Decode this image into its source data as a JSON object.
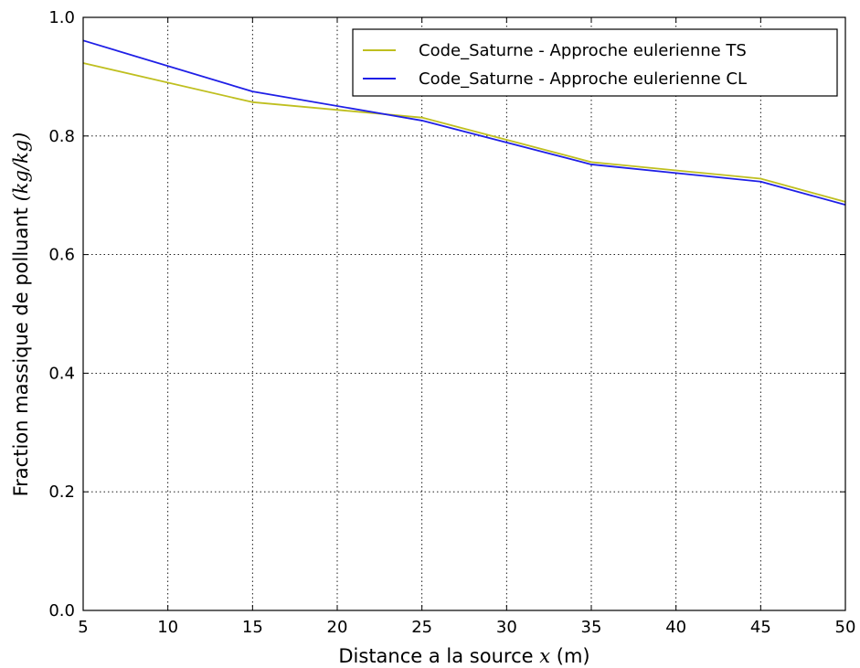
{
  "chart_data": {
    "type": "line",
    "xlabel": "Distance a la source",
    "xlabel_math": "x",
    "xlabel_unit": "(m)",
    "ylabel": "Fraction massique de polluant",
    "ylabel_unit": "(kg/kg)",
    "xlim": [
      5,
      50
    ],
    "ylim": [
      0.0,
      1.0
    ],
    "grid": true,
    "legend_position": "top-right",
    "x_ticks": [
      5,
      10,
      15,
      20,
      25,
      30,
      35,
      40,
      45,
      50
    ],
    "y_ticks": [
      0.0,
      0.2,
      0.4,
      0.6,
      0.8,
      1.0
    ],
    "x_tick_labels": [
      "5",
      "10",
      "15",
      "20",
      "25",
      "30",
      "35",
      "40",
      "45",
      "50"
    ],
    "y_tick_labels": [
      "0.0",
      "0.2",
      "0.4",
      "0.6",
      "0.8",
      "1.0"
    ],
    "x": [
      5,
      15,
      25,
      35,
      45,
      50
    ],
    "series": [
      {
        "name": "Code_Saturne - Approche eulerienne TS",
        "color": "#bfbf1f",
        "values": [
          0.923,
          0.857,
          0.831,
          0.756,
          0.728,
          0.689
        ]
      },
      {
        "name": "Code_Saturne - Approche eulerienne CL",
        "color": "#1f1fe6",
        "values": [
          0.961,
          0.875,
          0.826,
          0.752,
          0.723,
          0.684
        ]
      }
    ]
  }
}
